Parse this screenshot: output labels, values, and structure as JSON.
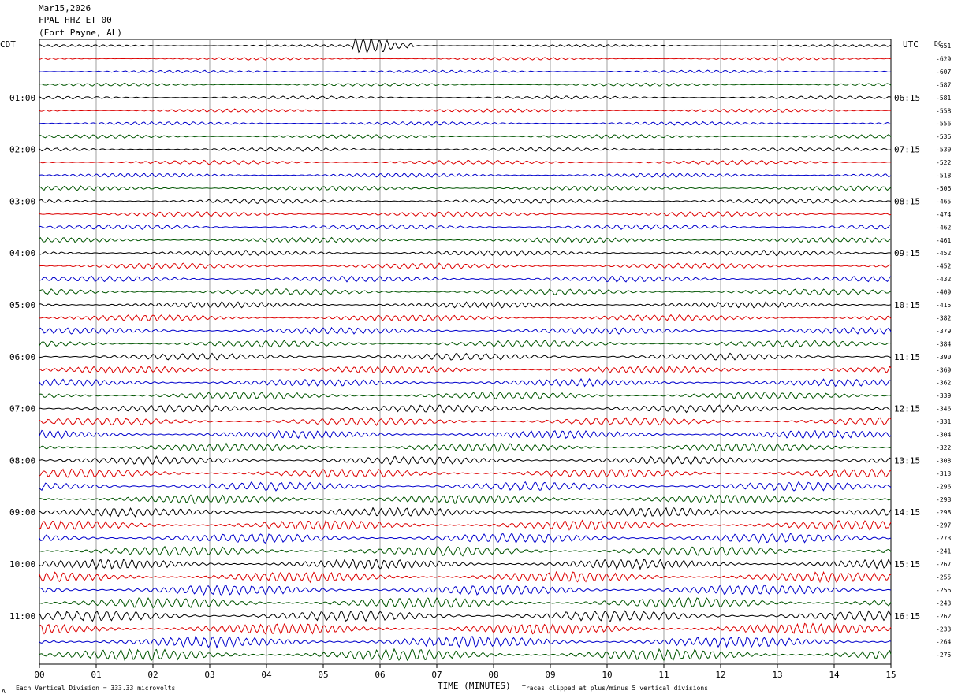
{
  "header": {
    "date": "Mar15,2026",
    "station": "FPAL HHZ ET 00",
    "location": "(Fort Payne, AL)"
  },
  "left_tz_label": "CDT",
  "right_tz_label": "UTC",
  "dc_label": "DC",
  "footer": {
    "scale_note": "Each Vertical Division =  333.33 microvolts",
    "xlabel": "TIME (MINUTES)",
    "clip_note": "Traces clipped at plus/minus 5 vertical divisions",
    "corner_mark": "A"
  },
  "colors": {
    "trace_cycle": [
      "#000000",
      "#dd0000",
      "#0000cc",
      "#005500"
    ],
    "grid": "#888888"
  },
  "chart_data": {
    "type": "line",
    "title": "FPAL HHZ ET 00 (Fort Payne, AL) Mar15,2026",
    "xlabel": "TIME (MINUTES)",
    "xlim": [
      0,
      15
    ],
    "x_ticks": [
      "00",
      "01",
      "02",
      "03",
      "04",
      "05",
      "06",
      "07",
      "08",
      "09",
      "10",
      "11",
      "12",
      "13",
      "14",
      "15"
    ],
    "trace_count": 48,
    "left_hour_labels": [
      "01:00",
      "02:00",
      "03:00",
      "04:00",
      "05:00",
      "06:00",
      "07:00",
      "08:00",
      "09:00",
      "10:00",
      "11:00"
    ],
    "right_hour_labels": [
      "06:15",
      "07:15",
      "08:15",
      "09:15",
      "10:15",
      "11:15",
      "12:15",
      "13:15",
      "14:15",
      "15:15",
      "16:15"
    ],
    "dc_offsets": [
      "-651",
      "-629",
      "-607",
      "-587",
      "-581",
      "-558",
      "-556",
      "-536",
      "-530",
      "-522",
      "-518",
      "-506",
      "-465",
      "-474",
      "-462",
      "-461",
      "-452",
      "-452",
      "-432",
      "-409",
      "-415",
      "-382",
      "-379",
      "-384",
      "-390",
      "-369",
      "-362",
      "-339",
      "-346",
      "-331",
      "-304",
      "-322",
      "-308",
      "-313",
      "-296",
      "-298",
      "-298",
      "-297",
      "-273",
      "-241",
      "-267",
      "-255",
      "-256",
      "-243",
      "-262",
      "-233",
      "-264",
      "-275"
    ]
  }
}
